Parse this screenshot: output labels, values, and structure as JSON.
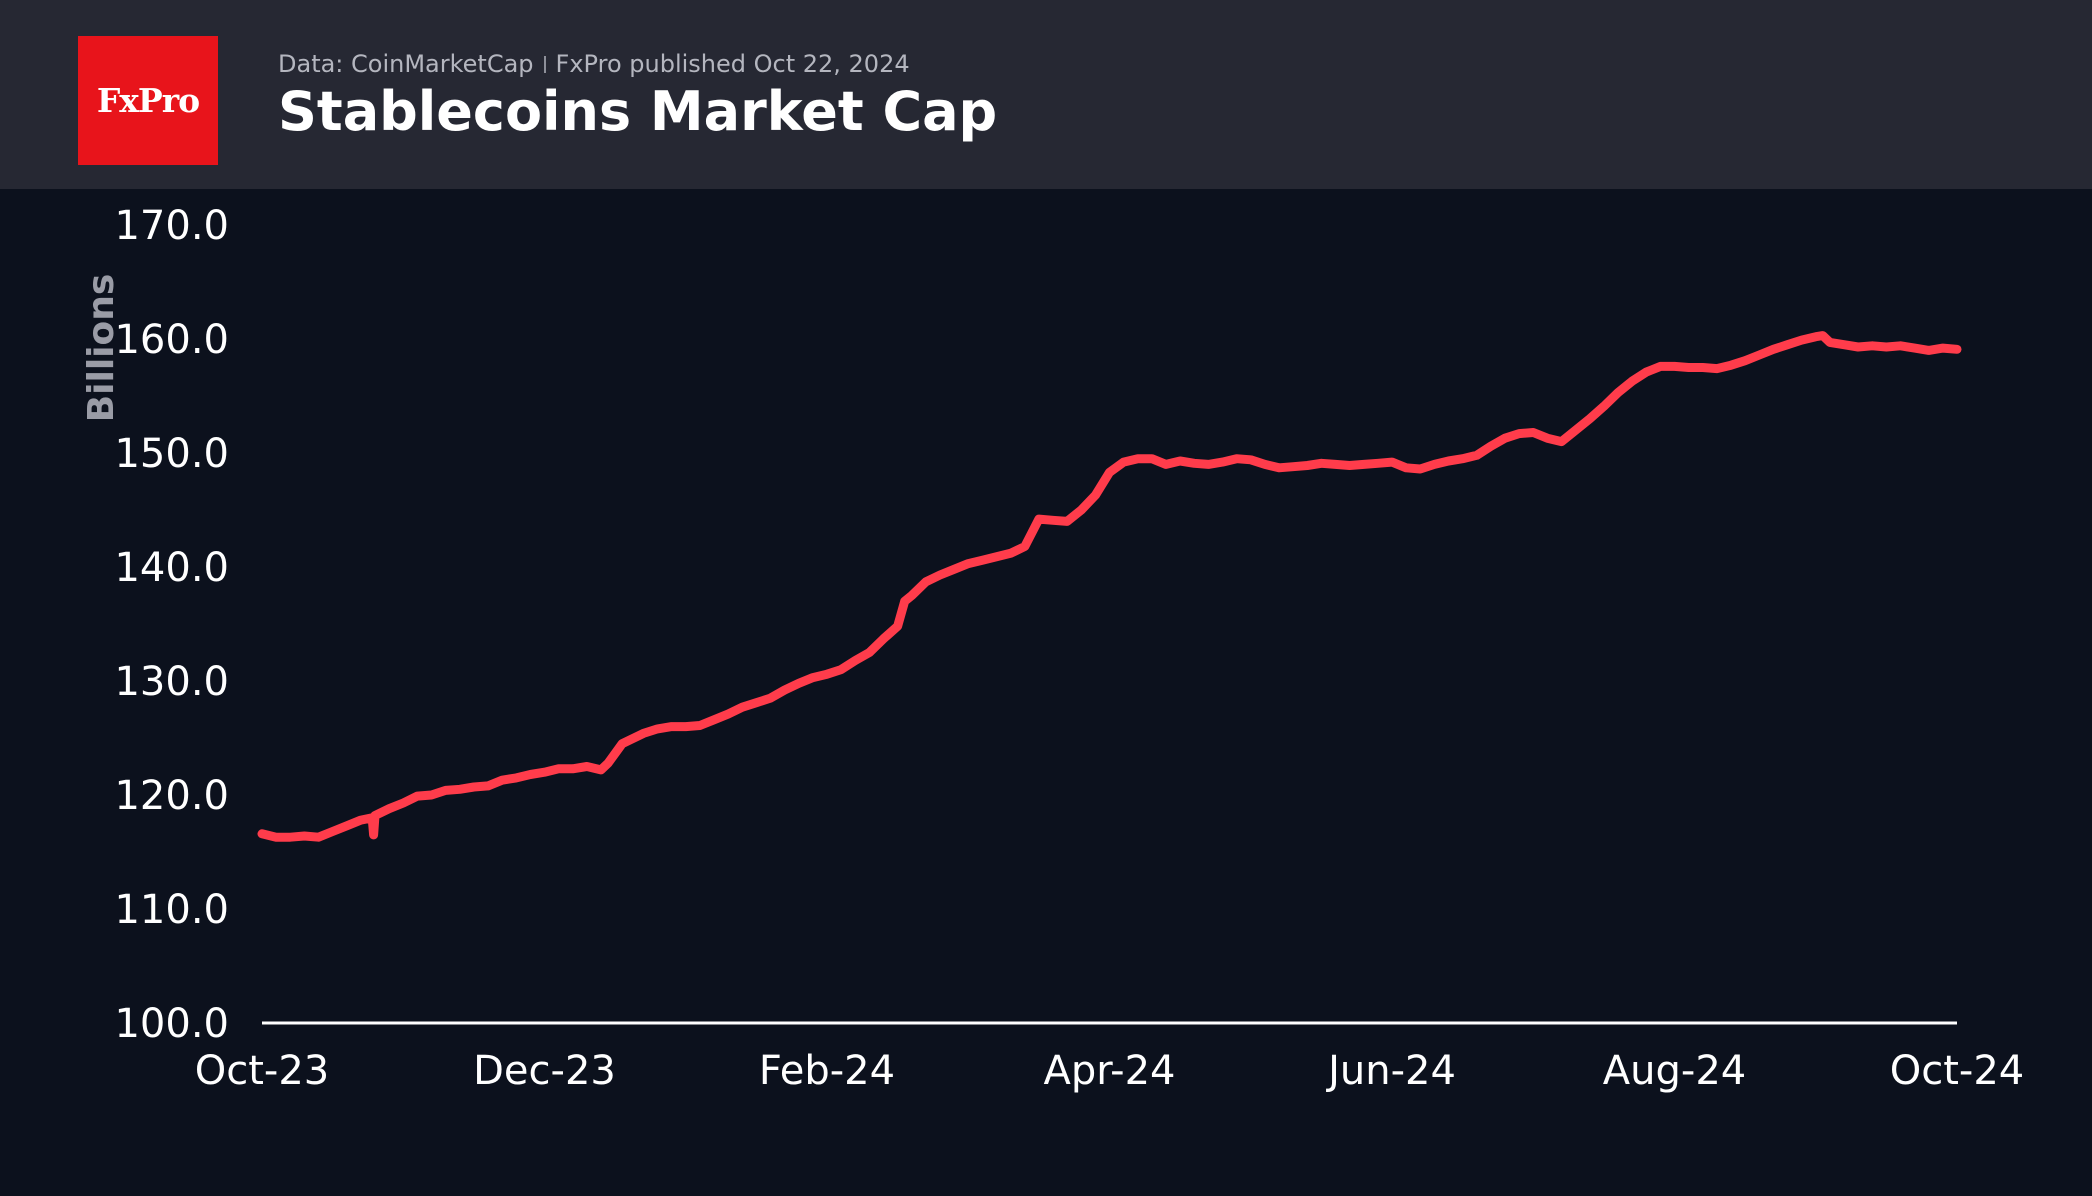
{
  "header": {
    "logo_text": "FxPro",
    "source_text": "Data: CoinMarketCap",
    "published_text": "FxPro published Oct 22, 2024",
    "title": "Stablecoins Market Cap"
  },
  "colors": {
    "header_bg": "#262833",
    "page_bg": "#0c111d",
    "logo_bg": "#e8141b",
    "line": "#ff3c4b",
    "axis": "#ffffff"
  },
  "chart_data": {
    "type": "line",
    "title": "Stablecoins Market Cap",
    "xlabel": "",
    "ylabel": "Billions",
    "ylim": [
      100,
      170
    ],
    "yticks": [
      "100.0",
      "110.0",
      "120.0",
      "130.0",
      "140.0",
      "150.0",
      "160.0",
      "170.0"
    ],
    "xlim": [
      0,
      12
    ],
    "xticks": [
      {
        "label": "Oct-23",
        "x": 0
      },
      {
        "label": "Dec-23",
        "x": 2
      },
      {
        "label": "Feb-24",
        "x": 4
      },
      {
        "label": "Apr-24",
        "x": 6
      },
      {
        "label": "Jun-24",
        "x": 8
      },
      {
        "label": "Aug-24",
        "x": 10
      },
      {
        "label": "Oct-24",
        "x": 12
      }
    ],
    "series": [
      {
        "name": "Stablecoins Market Cap",
        "points": [
          [
            0.0,
            116.6
          ],
          [
            0.1,
            116.3
          ],
          [
            0.2,
            116.3
          ],
          [
            0.3,
            116.4
          ],
          [
            0.4,
            116.3
          ],
          [
            0.5,
            116.8
          ],
          [
            0.6,
            117.3
          ],
          [
            0.7,
            117.8
          ],
          [
            0.78,
            118.0
          ],
          [
            0.79,
            116.5
          ],
          [
            0.8,
            118.2
          ],
          [
            0.9,
            118.8
          ],
          [
            1.0,
            119.3
          ],
          [
            1.1,
            119.9
          ],
          [
            1.2,
            120.0
          ],
          [
            1.3,
            120.4
          ],
          [
            1.4,
            120.5
          ],
          [
            1.5,
            120.7
          ],
          [
            1.6,
            120.8
          ],
          [
            1.7,
            121.3
          ],
          [
            1.8,
            121.5
          ],
          [
            1.9,
            121.8
          ],
          [
            2.0,
            122.0
          ],
          [
            2.1,
            122.3
          ],
          [
            2.2,
            122.3
          ],
          [
            2.3,
            122.5
          ],
          [
            2.4,
            122.2
          ],
          [
            2.45,
            122.8
          ],
          [
            2.55,
            124.5
          ],
          [
            2.7,
            125.4
          ],
          [
            2.8,
            125.8
          ],
          [
            2.9,
            126.0
          ],
          [
            3.0,
            126.0
          ],
          [
            3.1,
            126.1
          ],
          [
            3.2,
            126.6
          ],
          [
            3.3,
            127.1
          ],
          [
            3.4,
            127.7
          ],
          [
            3.5,
            128.1
          ],
          [
            3.6,
            128.5
          ],
          [
            3.7,
            129.2
          ],
          [
            3.8,
            129.8
          ],
          [
            3.9,
            130.3
          ],
          [
            4.0,
            130.6
          ],
          [
            4.1,
            131.0
          ],
          [
            4.2,
            131.8
          ],
          [
            4.3,
            132.5
          ],
          [
            4.4,
            133.7
          ],
          [
            4.5,
            134.8
          ],
          [
            4.55,
            137.0
          ],
          [
            4.6,
            137.5
          ],
          [
            4.7,
            138.7
          ],
          [
            4.8,
            139.3
          ],
          [
            4.9,
            139.8
          ],
          [
            5.0,
            140.3
          ],
          [
            5.1,
            140.6
          ],
          [
            5.2,
            140.9
          ],
          [
            5.3,
            141.2
          ],
          [
            5.4,
            141.8
          ],
          [
            5.5,
            144.2
          ],
          [
            5.6,
            144.1
          ],
          [
            5.7,
            144.0
          ],
          [
            5.8,
            145.0
          ],
          [
            5.9,
            146.3
          ],
          [
            6.0,
            148.3
          ],
          [
            6.1,
            149.2
          ],
          [
            6.2,
            149.5
          ],
          [
            6.3,
            149.5
          ],
          [
            6.4,
            149.0
          ],
          [
            6.5,
            149.3
          ],
          [
            6.6,
            149.1
          ],
          [
            6.7,
            149.0
          ],
          [
            6.8,
            149.2
          ],
          [
            6.9,
            149.5
          ],
          [
            7.0,
            149.4
          ],
          [
            7.1,
            149.0
          ],
          [
            7.2,
            148.7
          ],
          [
            7.3,
            148.8
          ],
          [
            7.4,
            148.9
          ],
          [
            7.5,
            149.1
          ],
          [
            7.6,
            149.0
          ],
          [
            7.7,
            148.9
          ],
          [
            7.8,
            149.0
          ],
          [
            7.9,
            149.1
          ],
          [
            8.0,
            149.2
          ],
          [
            8.1,
            148.7
          ],
          [
            8.2,
            148.6
          ],
          [
            8.3,
            149.0
          ],
          [
            8.4,
            149.3
          ],
          [
            8.5,
            149.5
          ],
          [
            8.6,
            149.8
          ],
          [
            8.7,
            150.6
          ],
          [
            8.8,
            151.3
          ],
          [
            8.9,
            151.7
          ],
          [
            9.0,
            151.8
          ],
          [
            9.1,
            151.3
          ],
          [
            9.2,
            151.0
          ],
          [
            9.3,
            152.0
          ],
          [
            9.4,
            153.0
          ],
          [
            9.5,
            154.1
          ],
          [
            9.6,
            155.3
          ],
          [
            9.7,
            156.3
          ],
          [
            9.8,
            157.1
          ],
          [
            9.9,
            157.6
          ],
          [
            10.0,
            157.6
          ],
          [
            10.1,
            157.5
          ],
          [
            10.2,
            157.5
          ],
          [
            10.3,
            157.4
          ],
          [
            10.4,
            157.7
          ],
          [
            10.5,
            158.1
          ],
          [
            10.6,
            158.6
          ],
          [
            10.7,
            159.1
          ],
          [
            10.8,
            159.5
          ],
          [
            10.9,
            159.9
          ],
          [
            11.0,
            160.2
          ],
          [
            11.05,
            160.3
          ],
          [
            11.1,
            159.7
          ],
          [
            11.2,
            159.5
          ],
          [
            11.3,
            159.3
          ],
          [
            11.4,
            159.4
          ],
          [
            11.5,
            159.3
          ],
          [
            11.6,
            159.4
          ],
          [
            11.7,
            159.2
          ],
          [
            11.8,
            159.0
          ],
          [
            11.9,
            159.2
          ],
          [
            12.0,
            159.1
          ]
        ]
      }
    ]
  }
}
